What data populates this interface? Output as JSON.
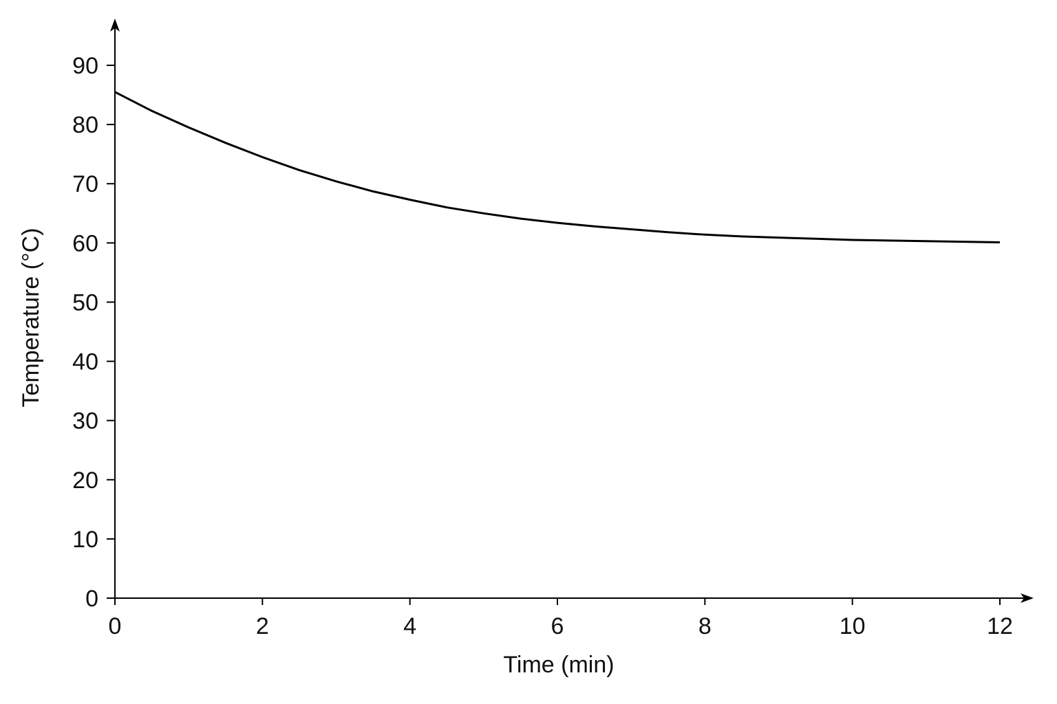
{
  "chart_data": {
    "type": "line",
    "title": "",
    "xlabel": "Time (min)",
    "ylabel": "Temperature (°C)",
    "xlim": [
      0,
      12
    ],
    "ylim": [
      0,
      90
    ],
    "x_ticks": [
      "0",
      "2",
      "4",
      "6",
      "8",
      "10",
      "12"
    ],
    "y_ticks": [
      "0",
      "10",
      "20",
      "30",
      "40",
      "50",
      "60",
      "70",
      "80",
      "90"
    ],
    "grid": false,
    "legend": "none",
    "series": [
      {
        "x": [
          0,
          0.5,
          1,
          1.5,
          2,
          2.5,
          3,
          3.5,
          4,
          4.5,
          5,
          5.5,
          6,
          6.5,
          7,
          7.5,
          8,
          8.5,
          9,
          9.5,
          10,
          10.5,
          11,
          11.5,
          12
        ],
        "y": [
          85.5,
          82.3,
          79.5,
          76.9,
          74.5,
          72.3,
          70.4,
          68.7,
          67.3,
          66.0,
          65.0,
          64.1,
          63.4,
          62.8,
          62.3,
          61.8,
          61.4,
          61.1,
          60.9,
          60.7,
          60.5,
          60.4,
          60.3,
          60.2,
          60.1
        ],
        "color": "#000000"
      }
    ]
  }
}
